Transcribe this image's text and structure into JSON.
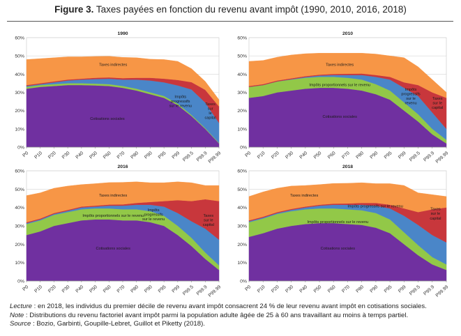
{
  "figure": {
    "number": "Figure 3.",
    "title": "Taxes payées en fonction du revenu avant impôt (1990, 2010, 2016, 2018)"
  },
  "colors": {
    "cotisations": "#7030A0",
    "proportionnels": "#92C848",
    "progressifs": "#4A86C8",
    "capital": "#C8373C",
    "indirectes": "#F79646"
  },
  "notes": {
    "lecture_label": "Lecture",
    "lecture_text": " : en 2018, les individus du premier décile de revenu avant impôt consacrent 24 % de leur revenu avant impôt en cotisations sociales.",
    "note_label": "Note",
    "note_text": " : Distributions du revenu factoriel avant impôt parmi la population adulte âgée de 25 à 60 ans travaillant au moins à temps partiel.",
    "source_label": "Source",
    "source_text": " : Bozio, Garbinti, Goupille-Lebret, Guillot et Piketty (2018)."
  },
  "chart_data": [
    {
      "type": "area",
      "title": "1990",
      "categories": [
        "P0",
        "P10",
        "P20",
        "P30",
        "P40",
        "P50",
        "P60",
        "P70",
        "P80",
        "P90",
        "P95",
        "P99",
        "P99.5",
        "P99.9",
        "P99.99"
      ],
      "yticks": [
        "0%",
        "10%",
        "20%",
        "30%",
        "40%",
        "50%",
        "60%"
      ],
      "ylim": [
        0,
        60
      ],
      "stacked": true,
      "series": [
        {
          "name": "Cotisations sociales",
          "key": "cotisations",
          "values": [
            32,
            33,
            33.5,
            34,
            34,
            33.8,
            33.5,
            32.5,
            31,
            29,
            27,
            23,
            17,
            10,
            2
          ]
        },
        {
          "name": "Impôts proportionnels sur le revenu",
          "key": "proportionnels",
          "values": [
            1,
            1,
            1,
            1,
            1,
            1,
            1,
            1,
            1,
            1,
            1,
            0.8,
            0.6,
            0.4,
            0.3
          ]
        },
        {
          "name": "Impôts progressifs sur le revenu",
          "key": "progressifs",
          "values": [
            0.5,
            0.5,
            1,
            1.5,
            2,
            2.5,
            3,
            3.5,
            5,
            6.5,
            7.5,
            10,
            14,
            14,
            11
          ]
        },
        {
          "name": "Taxes sur le capital",
          "key": "capital",
          "values": [
            0.5,
            0.5,
            0.5,
            0.5,
            0.5,
            0.7,
            0.7,
            0.8,
            1,
            1.5,
            2,
            3,
            4,
            7,
            9
          ]
        },
        {
          "name": "Taxes indirectes",
          "key": "indirectes",
          "values": [
            14,
            13.5,
            13,
            12.5,
            12,
            11.7,
            11.6,
            11.4,
            11,
            10.2,
            10.5,
            10.2,
            7.4,
            4.6,
            3.7
          ]
        }
      ],
      "labels": [
        {
          "text": "Taxes indirectes",
          "key": "indirectes"
        },
        {
          "text": "Impôts progressifs sur le revenu",
          "key": "progressifs"
        },
        {
          "text": "Taxes sur le capital",
          "key": "capital"
        },
        {
          "text": "Cotisations sociales",
          "key": "cotisations"
        }
      ]
    },
    {
      "type": "area",
      "title": "2010",
      "categories": [
        "P0",
        "P10",
        "P20",
        "P30",
        "P40",
        "P50",
        "P60",
        "P70",
        "P80",
        "P90",
        "P95",
        "P99",
        "P99.5",
        "P99.9",
        "P99.99"
      ],
      "yticks": [
        "0%",
        "10%",
        "20%",
        "30%",
        "40%",
        "50%",
        "60%"
      ],
      "ylim": [
        0,
        60
      ],
      "stacked": true,
      "series": [
        {
          "name": "Cotisations sociales",
          "key": "cotisations",
          "values": [
            27,
            28,
            30,
            31,
            32,
            32.5,
            32.5,
            32,
            31,
            29,
            26,
            20,
            14,
            7,
            2
          ]
        },
        {
          "name": "Impôts proportionnels sur le revenu",
          "key": "proportionnels",
          "values": [
            6,
            6,
            6,
            6,
            6,
            6,
            6,
            6,
            6,
            5.5,
            5,
            4.5,
            4,
            3,
            2
          ]
        },
        {
          "name": "Impôts progressifs sur le revenu",
          "key": "progressifs",
          "values": [
            0,
            0,
            0,
            0.2,
            0.4,
            0.7,
            1,
            1.5,
            2.5,
            4,
            6,
            8,
            10,
            9,
            6
          ]
        },
        {
          "name": "Taxes sur le capital",
          "key": "capital",
          "values": [
            0.5,
            0.5,
            0.5,
            0.5,
            0.5,
            0.5,
            0.6,
            0.7,
            0.8,
            1,
            1.5,
            3,
            6,
            11,
            17
          ]
        },
        {
          "name": "Taxes indirectes",
          "key": "indirectes",
          "values": [
            13.5,
            13,
            12.8,
            12.8,
            12.3,
            11.8,
            11.4,
            11.3,
            11.2,
            11.5,
            11.5,
            13.5,
            10,
            7,
            3
          ]
        }
      ],
      "labels": [
        {
          "text": "Taxes indirectes",
          "key": "indirectes"
        },
        {
          "text": "Impôts proportionnels sur le revenu",
          "key": "proportionnels"
        },
        {
          "text": "Impôts progressifs sur le revenu",
          "key": "progressifs"
        },
        {
          "text": "Taxes sur le capital",
          "key": "capital"
        },
        {
          "text": "Cotisations sociales",
          "key": "cotisations"
        }
      ]
    },
    {
      "type": "area",
      "title": "2016",
      "categories": [
        "P0",
        "P10",
        "P20",
        "P30",
        "P40",
        "P50",
        "P60",
        "P70",
        "P80",
        "P90",
        "P95",
        "P99",
        "P99.5",
        "P99.9",
        "P99.99"
      ],
      "yticks": [
        "0%",
        "10%",
        "20%",
        "30%",
        "40%",
        "50%",
        "60%"
      ],
      "ylim": [
        0,
        60
      ],
      "stacked": true,
      "series": [
        {
          "name": "Cotisations sociales",
          "key": "cotisations",
          "values": [
            25,
            27,
            30,
            31.5,
            33,
            33.5,
            33.5,
            33,
            33,
            32,
            30,
            25,
            19,
            12,
            6
          ]
        },
        {
          "name": "Impôts proportionnels sur le revenu",
          "key": "proportionnels",
          "values": [
            6,
            6,
            6,
            6,
            6,
            6,
            6,
            6,
            6,
            6,
            5.5,
            5,
            4.5,
            3.5,
            2.5
          ]
        },
        {
          "name": "Impôts progressifs sur le revenu",
          "key": "progressifs",
          "values": [
            0.5,
            0.5,
            0.5,
            0.7,
            1,
            1,
            1.5,
            2,
            2.5,
            3.5,
            5,
            7,
            9,
            13,
            14
          ]
        },
        {
          "name": "Taxes sur le capital",
          "key": "capital",
          "values": [
            0.5,
            0.5,
            0.5,
            0.5,
            0.5,
            0.5,
            0.6,
            0.7,
            1,
            1.5,
            3,
            7,
            11,
            16,
            21
          ]
        },
        {
          "name": "Taxes indirectes",
          "key": "indirectes",
          "values": [
            14.5,
            14,
            13.5,
            13,
            12,
            12,
            12,
            12,
            11.5,
            10.5,
            10,
            10,
            10,
            7.5,
            8.5
          ]
        }
      ],
      "labels": [
        {
          "text": "Taxes indirectes",
          "key": "indirectes"
        },
        {
          "text": "Impôts progressifs sur le revenu",
          "key": "progressifs"
        },
        {
          "text": "Impôts proportionnels sur le revenu",
          "key": "proportionnels"
        },
        {
          "text": "Taxes sur le capital",
          "key": "capital"
        },
        {
          "text": "Cotisations sociales",
          "key": "cotisations"
        }
      ]
    },
    {
      "type": "area",
      "title": "2018",
      "categories": [
        "P0",
        "P10",
        "P20",
        "P30",
        "P40",
        "P50",
        "P60",
        "P70",
        "P80",
        "P90",
        "P95",
        "P99",
        "P99.5",
        "P99.9",
        "P99.99"
      ],
      "yticks": [
        "0%",
        "10%",
        "20%",
        "30%",
        "40%",
        "50%",
        "60%"
      ],
      "ylim": [
        0,
        60
      ],
      "stacked": true,
      "series": [
        {
          "name": "Cotisations sociales",
          "key": "cotisations",
          "values": [
            24,
            26,
            28.5,
            30,
            31,
            31.5,
            31.5,
            31,
            30.5,
            29,
            26,
            20,
            14,
            9,
            6
          ]
        },
        {
          "name": "Impôts proportionnels sur le revenu",
          "key": "proportionnels",
          "values": [
            8,
            8,
            8,
            8,
            8,
            8,
            8,
            8,
            8,
            8,
            7.5,
            6.5,
            5.5,
            4,
            3
          ]
        },
        {
          "name": "Impôts progressifs sur le revenu",
          "key": "progressifs",
          "values": [
            0.5,
            0.5,
            0.5,
            0.7,
            1,
            1.5,
            2,
            2.5,
            3,
            4,
            6,
            9,
            11,
            12,
            12
          ]
        },
        {
          "name": "Taxes sur le capital",
          "key": "capital",
          "values": [
            0.5,
            0.5,
            0.5,
            0.5,
            0.5,
            0.5,
            0.6,
            0.7,
            1,
            1.5,
            2,
            4,
            7,
            14,
            19
          ]
        },
        {
          "name": "Taxes indirectes",
          "key": "indirectes",
          "values": [
            13,
            13.5,
            13,
            12.5,
            11.5,
            11,
            11,
            11,
            11,
            10.5,
            11.5,
            12.5,
            10.5,
            8,
            6
          ]
        }
      ],
      "labels": [
        {
          "text": "Taxes indirectes",
          "key": "indirectes"
        },
        {
          "text": "Impôts progressifs sur le revenu",
          "key": "progressifs"
        },
        {
          "text": "Impôts proportionnels sur le revenu",
          "key": "proportionnels"
        },
        {
          "text": "Taxes sur le capital",
          "key": "capital"
        },
        {
          "text": "Cotisations sociales",
          "key": "cotisations"
        }
      ]
    }
  ]
}
